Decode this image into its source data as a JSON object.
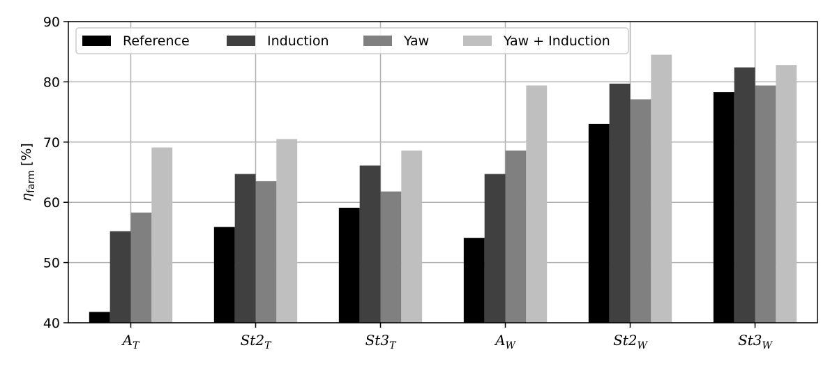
{
  "chart_data": {
    "type": "bar",
    "categories": [
      {
        "base": "A",
        "sub": "T"
      },
      {
        "base": "St2",
        "sub": "T"
      },
      {
        "base": "St3",
        "sub": "T"
      },
      {
        "base": "A",
        "sub": "W"
      },
      {
        "base": "St2",
        "sub": "W"
      },
      {
        "base": "St3",
        "sub": "W"
      }
    ],
    "series": [
      {
        "name": "Reference",
        "color": "#000000",
        "values": [
          41.8,
          55.9,
          59.1,
          54.1,
          73.0,
          78.3
        ]
      },
      {
        "name": "Induction",
        "color": "#404040",
        "values": [
          55.2,
          64.7,
          66.1,
          64.7,
          79.7,
          82.4
        ]
      },
      {
        "name": "Yaw",
        "color": "#808080",
        "values": [
          58.3,
          63.5,
          61.8,
          68.6,
          77.1,
          79.4
        ]
      },
      {
        "name": "Yaw + Induction",
        "color": "#bfbfbf",
        "values": [
          69.1,
          70.5,
          68.6,
          79.4,
          84.5,
          82.8
        ]
      }
    ],
    "ylabel": {
      "symbol": "η",
      "sub": "farm",
      "unit": "[%]"
    },
    "ylim": [
      40,
      90
    ],
    "yticks": [
      40,
      50,
      60,
      70,
      80,
      90
    ],
    "grid": true,
    "legend_position": "top-left"
  }
}
